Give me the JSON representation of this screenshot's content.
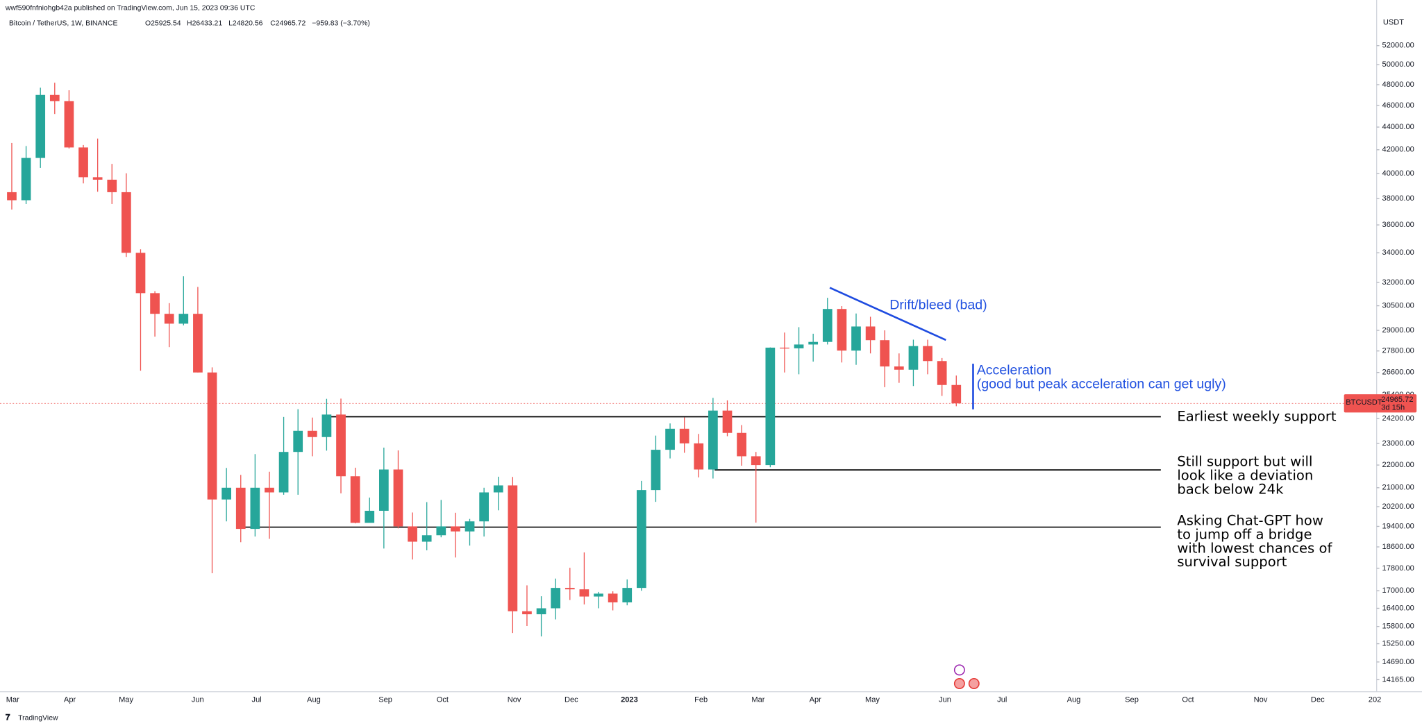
{
  "chart_data": {
    "type": "candlestick",
    "header": "wwf590fnfniohgb42a published on TradingView.com, Jun 15, 2023 09:36 UTC",
    "symbol": "Bitcoin / TetherUS, 1W, BINANCE",
    "ohlc_labels": [
      "O25925.54",
      "H26433.21",
      "L24820.56",
      "C24965.72"
    ],
    "change_label": "−959.83 (−3.70%)",
    "currency": "USDT",
    "ticker": "BTCUSDT",
    "countdown": "3d 15h",
    "brand": "TradingView",
    "log_scale": true,
    "grid": false,
    "up_color": "#26a69a",
    "down_color": "#ef5350",
    "ylim": [
      13820,
      55530
    ],
    "yticks": [
      {
        "value": 52000,
        "label": "52000.00"
      },
      {
        "value": 50000,
        "label": "50000.00"
      },
      {
        "value": 48000,
        "label": "48000.00"
      },
      {
        "value": 46000,
        "label": "46000.00"
      },
      {
        "value": 44000,
        "label": "44000.00"
      },
      {
        "value": 42000,
        "label": "42000.00"
      },
      {
        "value": 40000,
        "label": "40000.00"
      },
      {
        "value": 38000,
        "label": "38000.00"
      },
      {
        "value": 36000,
        "label": "36000.00"
      },
      {
        "value": 34000,
        "label": "34000.00"
      },
      {
        "value": 32000,
        "label": "32000.00"
      },
      {
        "value": 30500,
        "label": "30500.00"
      },
      {
        "value": 29000,
        "label": "29000.00"
      },
      {
        "value": 27800,
        "label": "27800.00"
      },
      {
        "value": 26600,
        "label": "26600.00"
      },
      {
        "value": 25400,
        "label": "25400.00"
      },
      {
        "value": 24200,
        "label": "24200.00"
      },
      {
        "value": 23000,
        "label": "23000.00"
      },
      {
        "value": 22000,
        "label": "22000.00"
      },
      {
        "value": 21000,
        "label": "21000.00"
      },
      {
        "value": 20200,
        "label": "20200.00"
      },
      {
        "value": 19400,
        "label": "19400.00"
      },
      {
        "value": 18600,
        "label": "18600.00"
      },
      {
        "value": 17800,
        "label": "17800.00"
      },
      {
        "value": 17000,
        "label": "17000.00"
      },
      {
        "value": 16400,
        "label": "16400.00"
      },
      {
        "value": 15800,
        "label": "15800.00"
      },
      {
        "value": 15250,
        "label": "15250.00"
      },
      {
        "value": 14690,
        "label": "14690.00"
      },
      {
        "value": 14165,
        "label": "14165.00"
      }
    ],
    "x_labels": [
      "Mar",
      "Apr",
      "May",
      "Jun",
      "Jul",
      "Aug",
      "Sep",
      "Oct",
      "Nov",
      "Dec",
      "2023",
      "Feb",
      "Mar",
      "Apr",
      "May",
      "Jun",
      "Jul",
      "Aug",
      "Sep",
      "Oct",
      "Nov",
      "Dec",
      "202"
    ],
    "open": [
      38500,
      37870,
      41300,
      47000,
      46400,
      42200,
      39700,
      39500,
      38500,
      34000,
      31300,
      30000,
      29400,
      30000,
      26600,
      20500,
      21000,
      19300,
      21000,
      20800,
      22600,
      23600,
      23300,
      24400,
      21500,
      19540,
      20030,
      21800,
      19400,
      18800,
      19050,
      19400,
      19200,
      19600,
      20800,
      21100,
      16300,
      16200,
      16400,
      17100,
      17050,
      16800,
      16900,
      16600,
      17100,
      20900,
      22700,
      23700,
      23000,
      21800,
      24600,
      23500,
      22400,
      22000,
      27990,
      27950,
      28170,
      28320,
      30300,
      27820,
      29230,
      28420,
      26930,
      26750,
      28080,
      27230,
      25925.54
    ],
    "high": [
      42594,
      42325,
      47700,
      48189,
      47450,
      42415,
      42976,
      40800,
      40023,
      34243,
      31426,
      30665,
      32399,
      31700,
      26880,
      21870,
      21560,
      22500,
      21700,
      24280,
      24670,
      24250,
      25200,
      25210,
      21880,
      20580,
      22800,
      22670,
      19960,
      20390,
      20480,
      19950,
      19700,
      21000,
      21480,
      21470,
      17190,
      16810,
      17430,
      17820,
      18390,
      16960,
      16980,
      17400,
      21300,
      23370,
      23960,
      24255,
      23450,
      25250,
      25120,
      23880,
      22600,
      28000,
      28870,
      29190,
      28800,
      31000,
      30480,
      30020,
      29820,
      29000,
      27660,
      28450,
      28450,
      27400,
      26433.21
    ],
    "low": [
      37155,
      37578,
      40467,
      45200,
      42107,
      39200,
      38536,
      37580,
      33713,
      26700,
      28630,
      28019,
      29300,
      26600,
      17622,
      19600,
      18780,
      19000,
      18910,
      20700,
      20700,
      22400,
      22660,
      20760,
      19520,
      19560,
      18540,
      19320,
      18125,
      18470,
      18970,
      18200,
      18650,
      19000,
      20050,
      15590,
      15815,
      15480,
      16030,
      16680,
      16530,
      16400,
      16330,
      16500,
      17000,
      20400,
      22300,
      22560,
      21450,
      21400,
      23340,
      21970,
      19550,
      21900,
      26600,
      26500,
      27200,
      28170,
      27150,
      27020,
      27660,
      25810,
      26040,
      25870,
      26500,
      25350,
      24820.56
    ],
    "close": [
      37870,
      41300,
      47000,
      46400,
      42200,
      39700,
      39500,
      38500,
      34000,
      31300,
      30000,
      29400,
      30000,
      26600,
      20500,
      21000,
      19300,
      21000,
      20800,
      22600,
      23600,
      23300,
      24400,
      21500,
      19540,
      20030,
      21800,
      19400,
      18800,
      19050,
      19400,
      19200,
      19600,
      20800,
      21100,
      16300,
      16200,
      16400,
      17100,
      17050,
      16800,
      16900,
      16600,
      17100,
      20900,
      22700,
      23700,
      23000,
      21800,
      24600,
      23500,
      22400,
      22000,
      27990,
      27950,
      28170,
      28320,
      30300,
      27820,
      29230,
      28420,
      26930,
      26750,
      28080,
      27230,
      25925.54,
      24965.72
    ],
    "levels": [
      {
        "value": 24290,
        "label_lines": [
          "Earliest weekly support"
        ]
      },
      {
        "value": 21780,
        "label_lines": [
          "Still support but will",
          "look like a deviation",
          "back below 24k"
        ]
      },
      {
        "value": 19370,
        "label_lines": [
          "Asking Chat-GPT how",
          "to jump off a bridge",
          "with lowest chances of",
          "survival support"
        ]
      }
    ],
    "drift": {
      "label": "Drift/bleed (bad)",
      "values": [
        31650,
        28430
      ]
    },
    "acceleration": {
      "label_lines": [
        "Acceleration",
        "(good but peak acceleration can get ugly)"
      ],
      "values": [
        27080,
        24660
      ]
    }
  }
}
